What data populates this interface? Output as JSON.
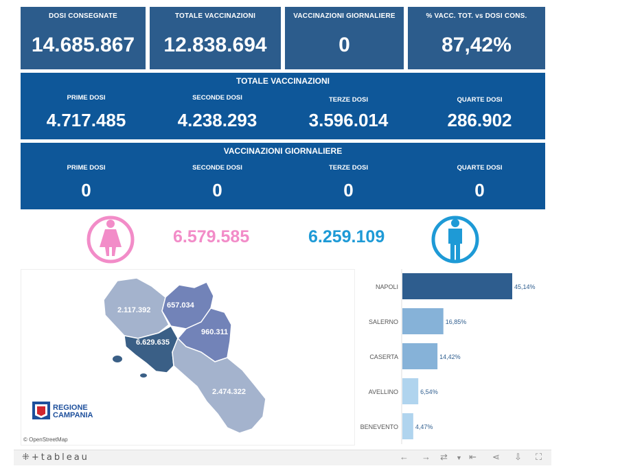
{
  "kpis": [
    {
      "label": "DOSI  CONSEGNATE",
      "value": "14.685.867"
    },
    {
      "label": "TOTALE VACCINAZIONI",
      "value": "12.838.694"
    },
    {
      "label": "VACCINAZIONI GIORNALIERE",
      "value": "0"
    },
    {
      "label": "% VACC. TOT. vs DOSI CONS.",
      "value": "87,42%"
    }
  ],
  "totale": {
    "title": "TOTALE VACCINAZIONI",
    "cells": [
      {
        "label": "PRIME DOSI",
        "value": "4.717.485"
      },
      {
        "label": "SECONDE DOSI",
        "value": "4.238.293"
      },
      {
        "label": "TERZE DOSI",
        "value": "3.596.014"
      },
      {
        "label": "QUARTE DOSI",
        "value": "286.902"
      }
    ]
  },
  "giornaliere": {
    "title": "VACCINAZIONI GIORNALIERE",
    "cells": [
      {
        "label": "PRIME DOSI",
        "value": "0"
      },
      {
        "label": "SECONDE DOSI",
        "value": "0"
      },
      {
        "label": "TERZE DOSI",
        "value": "0"
      },
      {
        "label": "QUARTE DOSI",
        "value": "0"
      }
    ]
  },
  "gender": {
    "female": "6.579.585",
    "male": "6.259.109",
    "female_color": "#f28cc8",
    "male_color": "#1e9ad6"
  },
  "map": {
    "labels": {
      "caserta": "2.117.392",
      "benevento": "657.034",
      "avellino": "960.311",
      "napoli": "6.629.635",
      "salerno": "2.474.322"
    },
    "logo_line1": "REGIONE",
    "logo_line2": "CAMPANIA",
    "attribution": "© OpenStreetMap"
  },
  "chart_data": {
    "type": "bar",
    "orientation": "horizontal",
    "categories": [
      "NAPOLI",
      "SALERNO",
      "CASERTA",
      "AVELLINO",
      "BENEVENTO"
    ],
    "values": [
      45.14,
      16.85,
      14.42,
      6.54,
      4.47
    ],
    "value_labels": [
      "45,14%",
      "16,85%",
      "14,42%",
      "6,54%",
      "4,47%"
    ],
    "colors": [
      "#2e5d8e",
      "#86b2d8",
      "#86b2d8",
      "#b0d4ee",
      "#b0d4ee"
    ]
  },
  "footer": {
    "logo": "⁜+tableau"
  }
}
